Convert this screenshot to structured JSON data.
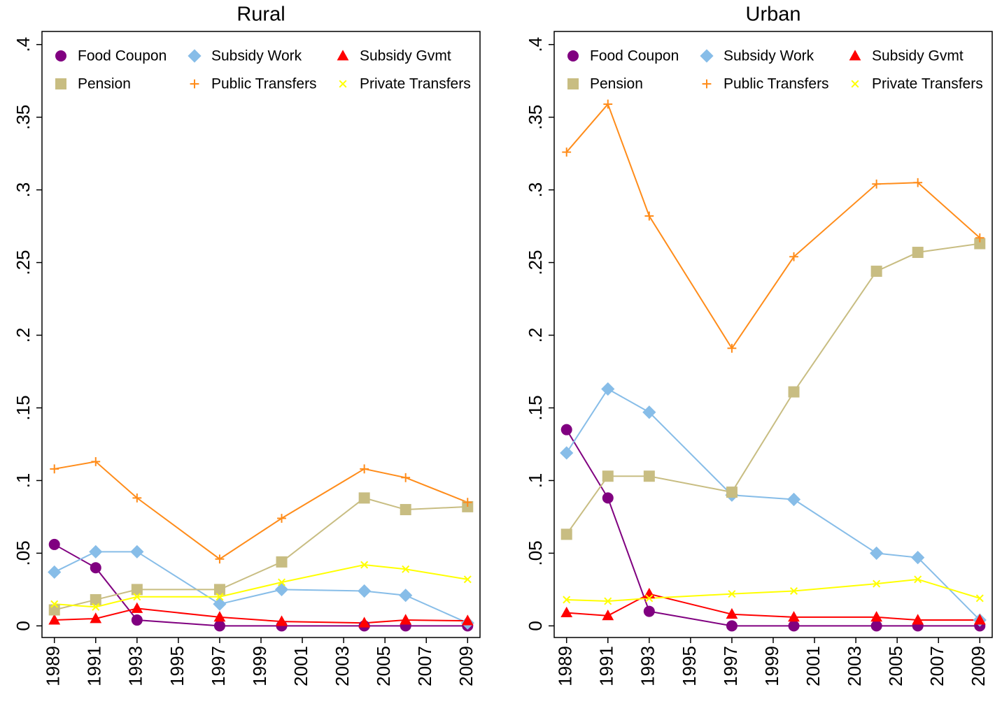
{
  "chart_data": [
    {
      "type": "line",
      "title": "Rural",
      "x": [
        1989,
        1991,
        1993,
        1997,
        2000,
        2004,
        2006,
        2009
      ],
      "xlim": [
        1988.4,
        2009.6
      ],
      "xticks": [
        1989,
        1991,
        1993,
        1995,
        1997,
        1999,
        2001,
        2003,
        2005,
        2007,
        2009
      ],
      "ylim": [
        -0.008,
        0.409
      ],
      "yticks": [
        {
          "value": 0.4,
          "label": ".4"
        },
        {
          "value": 0.35,
          "label": ".35"
        },
        {
          "value": 0.3,
          "label": ".3"
        },
        {
          "value": 0.25,
          "label": ".25"
        },
        {
          "value": 0.2,
          "label": ".2"
        },
        {
          "value": 0.15,
          "label": ".15"
        },
        {
          "value": 0.1,
          "label": ".1"
        },
        {
          "value": 0.05,
          "label": ".05"
        },
        0
      ],
      "series": [
        {
          "name": "Food Coupon",
          "color": "#800080",
          "marker": "circle",
          "values": [
            0.056,
            0.04,
            0.004,
            0,
            0,
            0,
            0,
            0
          ]
        },
        {
          "name": "Subsidy Work",
          "color": "#87bde8",
          "marker": "diamond",
          "values": [
            0.037,
            0.051,
            0.051,
            0.015,
            0.025,
            0.024,
            0.021,
            0.002
          ]
        },
        {
          "name": "Subsidy Gvmt",
          "color": "#ff0000",
          "marker": "triangle",
          "values": [
            0.004,
            0.005,
            0.012,
            0.006,
            0.003,
            0.002,
            0.004,
            0.0035
          ]
        },
        {
          "name": "Pension",
          "color": "#c8bd82",
          "marker": "square",
          "values": [
            0.011,
            0.018,
            0.025,
            0.025,
            0.044,
            0.088,
            0.08,
            0.082
          ]
        },
        {
          "name": "Public Transfers",
          "color": "#ff8c1a",
          "marker": "plus",
          "values": [
            0.108,
            0.113,
            0.088,
            0.046,
            0.074,
            0.108,
            0.102,
            0.085
          ]
        },
        {
          "name": "Private Transfers",
          "color": "#ffff00",
          "marker": "x",
          "values": [
            0.015,
            0.013,
            0.02,
            0.02,
            0.03,
            0.042,
            0.039,
            0.032
          ]
        }
      ]
    },
    {
      "type": "line",
      "title": "Urban",
      "x": [
        1989,
        1991,
        1993,
        1997,
        2000,
        2004,
        2006,
        2009
      ],
      "xlim": [
        1988.4,
        2009.6
      ],
      "xticks": [
        1989,
        1991,
        1993,
        1995,
        1997,
        1999,
        2001,
        2003,
        2005,
        2007,
        2009
      ],
      "ylim": [
        -0.008,
        0.409
      ],
      "yticks": [
        {
          "value": 0.4,
          "label": ".4"
        },
        {
          "value": 0.35,
          "label": ".35"
        },
        {
          "value": 0.3,
          "label": ".3"
        },
        {
          "value": 0.25,
          "label": ".25"
        },
        {
          "value": 0.2,
          "label": ".2"
        },
        {
          "value": 0.15,
          "label": ".15"
        },
        {
          "value": 0.1,
          "label": ".1"
        },
        {
          "value": 0.05,
          "label": ".05"
        },
        0
      ],
      "series": [
        {
          "name": "Food Coupon",
          "color": "#800080",
          "marker": "circle",
          "values": [
            0.135,
            0.088,
            0.01,
            0,
            0,
            0,
            0,
            0
          ]
        },
        {
          "name": "Subsidy Work",
          "color": "#87bde8",
          "marker": "diamond",
          "values": [
            0.119,
            0.163,
            0.147,
            0.09,
            0.087,
            0.05,
            0.047,
            0.004
          ]
        },
        {
          "name": "Subsidy Gvmt",
          "color": "#ff0000",
          "marker": "triangle",
          "values": [
            0.009,
            0.007,
            0.022,
            0.008,
            0.006,
            0.006,
            0.004,
            0.004
          ]
        },
        {
          "name": "Pension",
          "color": "#c8bd82",
          "marker": "square",
          "values": [
            0.063,
            0.103,
            0.103,
            0.092,
            0.161,
            0.244,
            0.257,
            0.263
          ]
        },
        {
          "name": "Public Transfers",
          "color": "#ff8c1a",
          "marker": "plus",
          "values": [
            0.326,
            0.359,
            0.282,
            0.191,
            0.254,
            0.304,
            0.305,
            0.267
          ]
        },
        {
          "name": "Private Transfers",
          "color": "#ffff00",
          "marker": "x",
          "values": [
            0.018,
            0.017,
            0.019,
            0.022,
            0.024,
            0.029,
            0.032,
            0.019
          ]
        }
      ]
    }
  ]
}
